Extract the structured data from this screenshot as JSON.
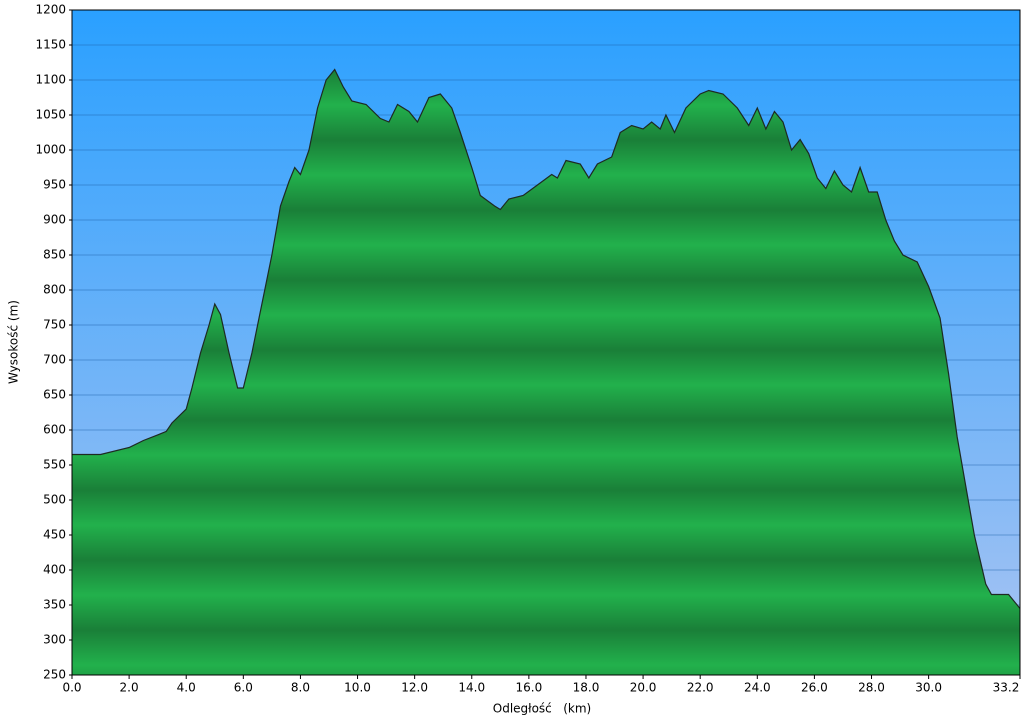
{
  "chart_data": {
    "type": "area",
    "x_label": "Odległość   (km)",
    "y_label": "Wysokość (m)",
    "x": [
      0,
      1.0,
      2.0,
      2.5,
      3.0,
      3.3,
      3.5,
      4.0,
      4.2,
      4.5,
      4.8,
      5.0,
      5.2,
      5.5,
      5.8,
      6.0,
      6.3,
      6.5,
      6.8,
      7.0,
      7.3,
      7.6,
      7.8,
      8.0,
      8.3,
      8.6,
      8.9,
      9.2,
      9.5,
      9.8,
      10.3,
      10.8,
      11.1,
      11.4,
      11.8,
      12.1,
      12.5,
      12.9,
      13.3,
      13.6,
      14.0,
      14.3,
      14.8,
      15.0,
      15.3,
      15.8,
      16.3,
      16.8,
      17.0,
      17.3,
      17.8,
      18.1,
      18.4,
      18.9,
      19.2,
      19.6,
      20.0,
      20.3,
      20.6,
      20.8,
      21.1,
      21.5,
      22.0,
      22.3,
      22.8,
      23.3,
      23.7,
      24.0,
      24.3,
      24.6,
      24.9,
      25.2,
      25.5,
      25.8,
      26.1,
      26.4,
      26.7,
      27.0,
      27.3,
      27.6,
      27.9,
      28.2,
      28.5,
      28.8,
      29.1,
      29.6,
      30.0,
      30.4,
      30.7,
      31.0,
      31.3,
      31.6,
      32.0,
      32.2,
      32.8,
      33.2
    ],
    "values": [
      565,
      565,
      575,
      585,
      593,
      598,
      610,
      630,
      660,
      710,
      750,
      780,
      765,
      710,
      660,
      660,
      710,
      750,
      810,
      850,
      920,
      955,
      975,
      965,
      1000,
      1060,
      1100,
      1115,
      1090,
      1070,
      1065,
      1045,
      1040,
      1065,
      1055,
      1040,
      1075,
      1080,
      1060,
      1025,
      975,
      935,
      920,
      915,
      930,
      935,
      950,
      965,
      960,
      985,
      980,
      960,
      980,
      990,
      1025,
      1035,
      1030,
      1040,
      1030,
      1050,
      1025,
      1060,
      1080,
      1085,
      1080,
      1060,
      1035,
      1060,
      1030,
      1055,
      1040,
      1000,
      1015,
      995,
      960,
      945,
      970,
      950,
      940,
      975,
      940,
      940,
      900,
      870,
      850,
      840,
      805,
      760,
      680,
      590,
      520,
      450,
      380,
      365,
      365,
      345
    ],
    "color": "#1fa64a",
    "xlim": [
      0,
      33.2
    ],
    "xticks": [
      {
        "value": 0,
        "label": "0.0"
      },
      {
        "value": 2,
        "label": "2.0"
      },
      {
        "value": 4,
        "label": "4.0"
      },
      {
        "value": 6,
        "label": "6.0"
      },
      {
        "value": 8,
        "label": "8.0"
      },
      {
        "value": 10,
        "label": "10.0"
      },
      {
        "value": 12,
        "label": "12.0"
      },
      {
        "value": 14,
        "label": "14.0"
      },
      {
        "value": 16,
        "label": "16.0"
      },
      {
        "value": 18,
        "label": "18.0"
      },
      {
        "value": 20,
        "label": "20.0"
      },
      {
        "value": 22,
        "label": "22.0"
      },
      {
        "value": 24,
        "label": "24.0"
      },
      {
        "value": 26,
        "label": "26.0"
      },
      {
        "value": 28,
        "label": "28.0"
      },
      {
        "value": 30,
        "label": "30.0"
      },
      {
        "value": 33.2,
        "label": "33.2"
      }
    ],
    "ylim": [
      250,
      1200
    ],
    "yticks": [
      250,
      300,
      350,
      400,
      450,
      500,
      550,
      600,
      650,
      700,
      750,
      800,
      850,
      900,
      950,
      1000,
      1050,
      1100,
      1150,
      1200
    ],
    "grid": true
  }
}
